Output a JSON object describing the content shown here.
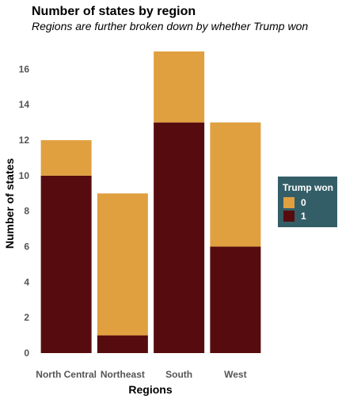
{
  "chart_data": {
    "type": "bar",
    "stacked": true,
    "title": "Number of states by region",
    "subtitle": "Regions are further broken down by whether Trump won",
    "xlabel": "Regions",
    "ylabel": "Number of states",
    "categories": [
      "North Central",
      "Northeast",
      "South",
      "West"
    ],
    "series": [
      {
        "name": "0",
        "values": [
          2,
          8,
          4,
          7
        ],
        "color": "#E0A040"
      },
      {
        "name": "1",
        "values": [
          10,
          1,
          13,
          6
        ],
        "color": "#560C0E"
      }
    ],
    "ylim": [
      0,
      17
    ],
    "yticks": [
      "0",
      "2",
      "4",
      "6",
      "8",
      "10",
      "12",
      "14",
      "16"
    ],
    "grid": false,
    "legend": {
      "title": "Trump won",
      "position": "right",
      "background": "#345E67"
    }
  }
}
